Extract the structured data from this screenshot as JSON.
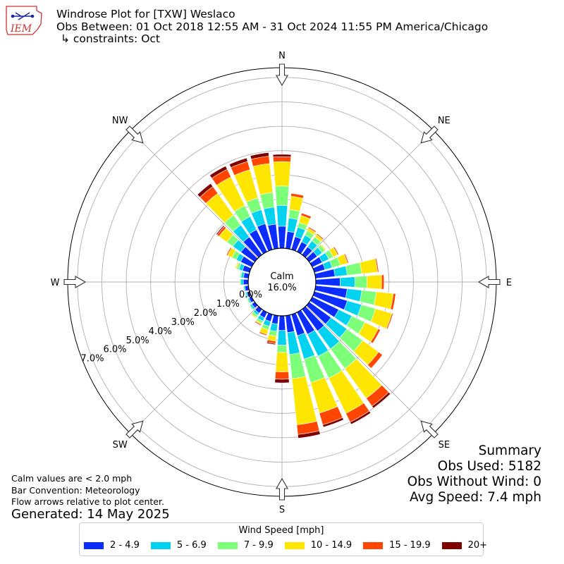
{
  "header": {
    "title": "Windrose Plot for [TXW] Weslaco",
    "obs_between": "Obs Between: 01 Oct 2018 12:55 AM - 31 Oct 2024 11:55 PM America/Chicago",
    "constraints": "↳ constraints: Oct"
  },
  "logo_text": "IEM",
  "notes": {
    "calm": "Calm values are < 2.0 mph",
    "convention": "Bar Convention: Meteorology",
    "flow": "Flow arrows relative to plot center.",
    "generated": "Generated: 14 May 2025"
  },
  "summary": {
    "title": "Summary",
    "obs_used": "Obs Used: 5182",
    "obs_without_wind": "Obs Without Wind: 0",
    "avg_speed": "Avg Speed: 7.4 mph"
  },
  "legend": {
    "title": "Wind Speed [mph]",
    "items": [
      {
        "label": "2 - 4.9",
        "color": "#0a2cff"
      },
      {
        "label": "5 - 6.9",
        "color": "#00d2f0"
      },
      {
        "label": "7 - 9.9",
        "color": "#7dff7a"
      },
      {
        "label": "10 - 14.9",
        "color": "#ffe600"
      },
      {
        "label": "15 - 19.9",
        "color": "#ff4500"
      },
      {
        "label": "20+",
        "color": "#800000"
      }
    ]
  },
  "chart_data": {
    "type": "windrose",
    "calm_label": "Calm",
    "calm_value": "16.0%",
    "radial_ticks": [
      "0.0%",
      "1.0%",
      "2.0%",
      "3.0%",
      "4.0%",
      "5.0%",
      "6.0%",
      "7.0%"
    ],
    "rmax": 7.4,
    "directions": [
      "N",
      "NE",
      "E",
      "SE",
      "S",
      "SW",
      "W",
      "NW"
    ],
    "bin_width_deg": 10,
    "bins": [
      "2 - 4.9",
      "5 - 6.9",
      "7 - 9.9",
      "10 - 14.9",
      "15 - 19.9",
      "20+"
    ],
    "sectors": [
      {
        "dir": 0,
        "values": [
          0.9,
          0.85,
          0.8,
          1.0,
          0.2,
          0.1
        ]
      },
      {
        "dir": 10,
        "values": [
          0.7,
          0.55,
          0.35,
          0.55,
          0.12,
          0.0
        ]
      },
      {
        "dir": 20,
        "values": [
          0.55,
          0.4,
          0.2,
          0.3,
          0.1,
          0.0
        ]
      },
      {
        "dir": 30,
        "values": [
          0.45,
          0.3,
          0.2,
          0.12,
          0.05,
          0.0
        ]
      },
      {
        "dir": 40,
        "values": [
          0.4,
          0.3,
          0.2,
          0.12,
          0.05,
          0.0
        ]
      },
      {
        "dir": 50,
        "values": [
          0.4,
          0.25,
          0.15,
          0.05,
          0.0,
          0.0
        ]
      },
      {
        "dir": 60,
        "values": [
          0.45,
          0.3,
          0.2,
          0.2,
          0.05,
          0.0
        ]
      },
      {
        "dir": 70,
        "values": [
          0.45,
          0.3,
          0.35,
          0.3,
          0.05,
          0.0
        ]
      },
      {
        "dir": 80,
        "values": [
          0.8,
          0.5,
          0.6,
          0.65,
          0.05,
          0.0
        ]
      },
      {
        "dir": 90,
        "values": [
          1.0,
          0.6,
          0.5,
          0.6,
          0.1,
          0.0
        ]
      },
      {
        "dir": 100,
        "values": [
          1.3,
          0.6,
          0.6,
          0.7,
          0.1,
          0.0
        ]
      },
      {
        "dir": 110,
        "values": [
          1.4,
          0.6,
          0.6,
          0.7,
          0.05,
          0.0
        ]
      },
      {
        "dir": 120,
        "values": [
          1.2,
          0.6,
          0.6,
          0.6,
          0.1,
          0.0
        ]
      },
      {
        "dir": 130,
        "values": [
          1.1,
          0.8,
          0.8,
          0.8,
          0.2,
          0.0
        ]
      },
      {
        "dir": 140,
        "values": [
          1.1,
          0.9,
          1.0,
          1.5,
          0.4,
          0.1
        ]
      },
      {
        "dir": 150,
        "values": [
          1.0,
          1.0,
          1.0,
          1.6,
          0.4,
          0.1
        ]
      },
      {
        "dir": 160,
        "values": [
          0.9,
          1.0,
          1.0,
          1.3,
          0.5,
          0.1
        ]
      },
      {
        "dir": 170,
        "values": [
          0.7,
          0.9,
          1.0,
          1.9,
          0.4,
          0.15
        ]
      },
      {
        "dir": 180,
        "values": [
          0.6,
          0.6,
          0.3,
          0.8,
          0.3,
          0.15
        ]
      },
      {
        "dir": 190,
        "values": [
          0.35,
          0.3,
          0.2,
          0.2,
          0.1,
          0.05
        ]
      },
      {
        "dir": 200,
        "values": [
          0.3,
          0.2,
          0.15,
          0.2,
          0.05,
          0.0
        ]
      },
      {
        "dir": 210,
        "values": [
          0.25,
          0.15,
          0.1,
          0.05,
          0.05,
          0.0
        ]
      },
      {
        "dir": 220,
        "values": [
          0.2,
          0.1,
          0.1,
          0.05,
          0.0,
          0.0
        ]
      },
      {
        "dir": 230,
        "values": [
          0.15,
          0.08,
          0.05,
          0.02,
          0.0,
          0.0
        ]
      },
      {
        "dir": 240,
        "values": [
          0.12,
          0.06,
          0.04,
          0.02,
          0.0,
          0.0
        ]
      },
      {
        "dir": 250,
        "values": [
          0.12,
          0.06,
          0.04,
          0.02,
          0.0,
          0.0
        ]
      },
      {
        "dir": 260,
        "values": [
          0.15,
          0.05,
          0.02,
          0.0,
          0.0,
          0.0
        ]
      },
      {
        "dir": 270,
        "values": [
          0.2,
          0.1,
          0.05,
          0.0,
          0.0,
          0.0
        ]
      },
      {
        "dir": 280,
        "values": [
          0.2,
          0.1,
          0.05,
          0.02,
          0.0,
          0.0
        ]
      },
      {
        "dir": 290,
        "values": [
          0.3,
          0.15,
          0.1,
          0.05,
          0.02,
          0.0
        ]
      },
      {
        "dir": 300,
        "values": [
          0.5,
          0.2,
          0.2,
          0.2,
          0.05,
          0.0
        ]
      },
      {
        "dir": 310,
        "values": [
          0.7,
          0.4,
          0.3,
          0.4,
          0.1,
          0.05
        ]
      },
      {
        "dir": 320,
        "values": [
          0.9,
          0.6,
          0.5,
          1.1,
          0.35,
          0.15
        ]
      },
      {
        "dir": 330,
        "values": [
          1.0,
          0.6,
          0.5,
          1.3,
          0.35,
          0.15
        ]
      },
      {
        "dir": 340,
        "values": [
          1.1,
          0.6,
          0.5,
          1.2,
          0.35,
          0.15
        ]
      },
      {
        "dir": 350,
        "values": [
          1.0,
          0.7,
          0.6,
          1.2,
          0.3,
          0.15
        ]
      }
    ]
  }
}
